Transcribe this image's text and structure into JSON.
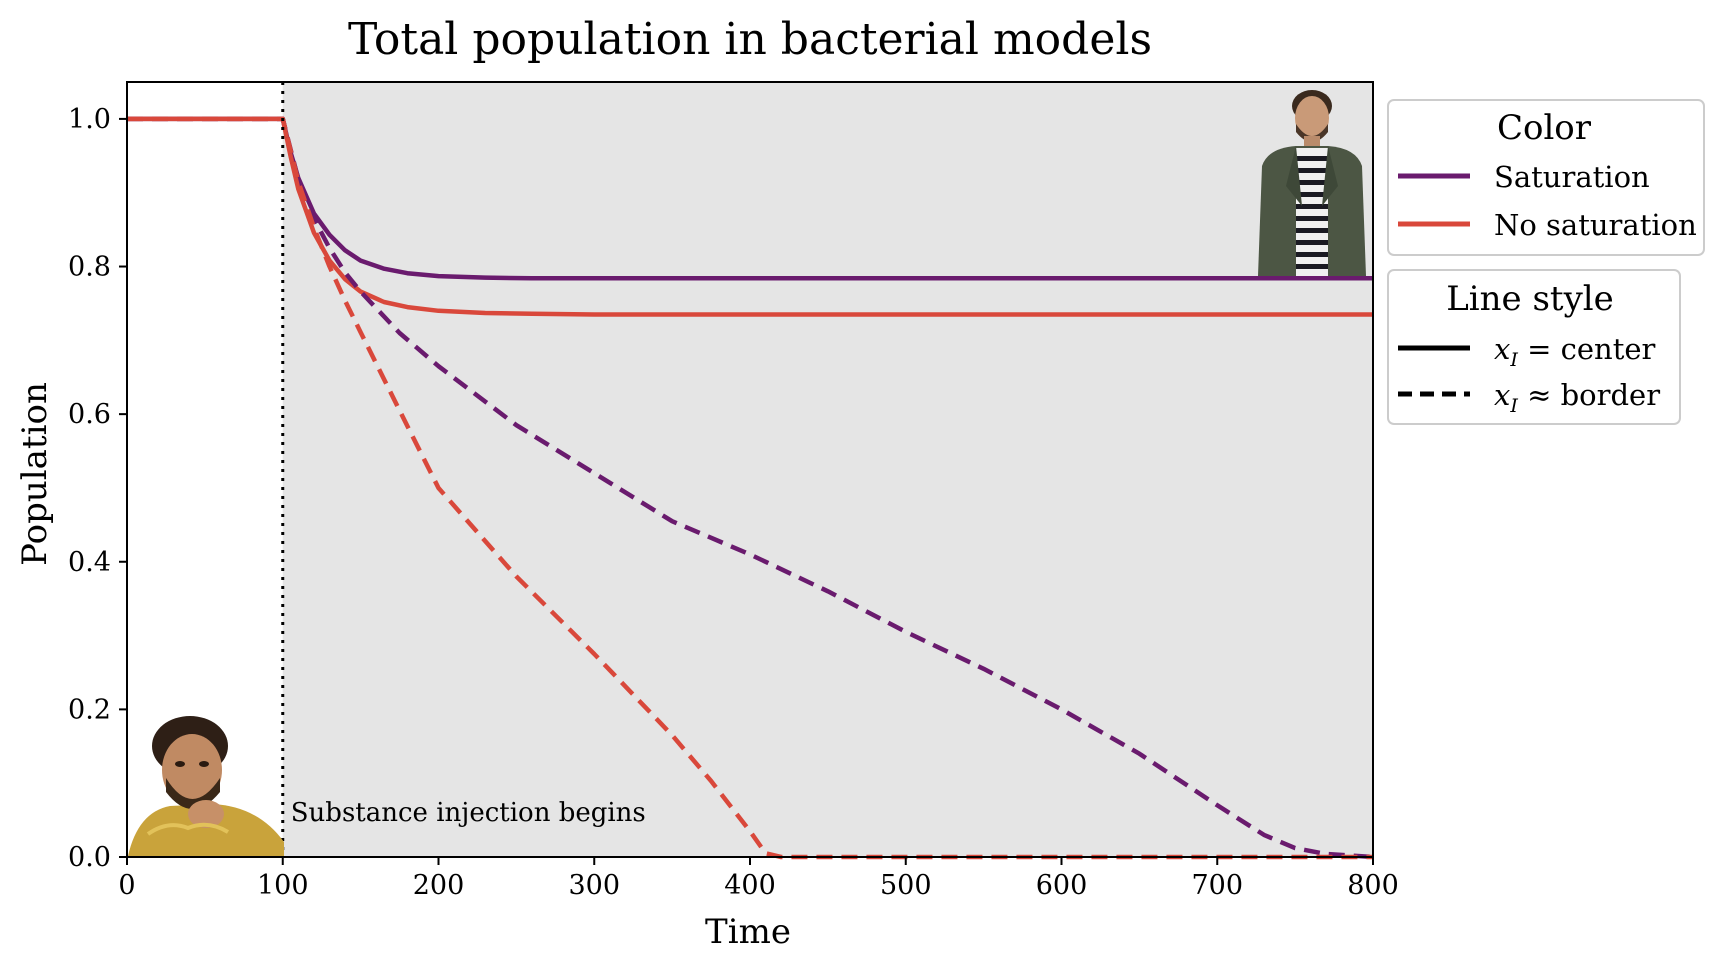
{
  "chart_data": {
    "type": "line",
    "title": "Total population in bacterial models",
    "xlabel": "Time",
    "ylabel": "Population",
    "xlim": [
      0,
      800
    ],
    "ylim": [
      0,
      1.05
    ],
    "xticks": [
      0,
      100,
      200,
      300,
      400,
      500,
      600,
      700,
      800
    ],
    "yticks": [
      0.0,
      0.2,
      0.4,
      0.6,
      0.8,
      1.0
    ],
    "xtick_labels": [
      "0",
      "100",
      "200",
      "300",
      "400",
      "500",
      "600",
      "700",
      "800"
    ],
    "ytick_labels": [
      "0.0",
      "0.2",
      "0.4",
      "0.6",
      "0.8",
      "1.0"
    ],
    "grid": false,
    "background_shading": {
      "from": 100,
      "to": 800,
      "color": "#e5e5e5"
    },
    "annotation": {
      "text": "Substance injection begins",
      "x": 100
    },
    "vline": {
      "x": 100,
      "style": "dotted"
    },
    "colors": {
      "saturation": "#6a1b6e",
      "no_saturation": "#d9483b",
      "axis": "#000000"
    },
    "series": [
      {
        "color": "#6a1b6e",
        "dash": "solid",
        "x": [
          0,
          100,
          105,
          110,
          120,
          130,
          140,
          150,
          165,
          180,
          200,
          230,
          260,
          300,
          400,
          500,
          600,
          700,
          800
        ],
        "y": [
          1.0,
          1.0,
          0.955,
          0.92,
          0.872,
          0.843,
          0.822,
          0.808,
          0.797,
          0.791,
          0.787,
          0.785,
          0.784,
          0.784,
          0.784,
          0.784,
          0.784,
          0.784,
          0.784
        ]
      },
      {
        "color": "#d9483b",
        "dash": "solid",
        "x": [
          0,
          100,
          105,
          110,
          120,
          130,
          140,
          150,
          165,
          180,
          200,
          230,
          260,
          300,
          400,
          500,
          600,
          700,
          800
        ],
        "y": [
          1.0,
          1.0,
          0.95,
          0.905,
          0.846,
          0.808,
          0.783,
          0.766,
          0.752,
          0.745,
          0.74,
          0.737,
          0.736,
          0.735,
          0.735,
          0.735,
          0.735,
          0.735,
          0.735
        ]
      },
      {
        "color": "#6a1b6e",
        "dash": "dashed",
        "x": [
          0,
          100,
          110,
          120,
          130,
          140,
          150,
          175,
          200,
          250,
          300,
          350,
          400,
          450,
          500,
          550,
          600,
          650,
          700,
          730,
          750,
          770,
          800
        ],
        "y": [
          1.0,
          1.0,
          0.918,
          0.865,
          0.825,
          0.792,
          0.766,
          0.71,
          0.665,
          0.585,
          0.52,
          0.455,
          0.41,
          0.36,
          0.305,
          0.255,
          0.2,
          0.14,
          0.07,
          0.03,
          0.012,
          0.004,
          0.0
        ]
      },
      {
        "color": "#d9483b",
        "dash": "dashed",
        "x": [
          0,
          100,
          110,
          120,
          130,
          140,
          150,
          175,
          200,
          250,
          300,
          350,
          375,
          400,
          410,
          420,
          500,
          600,
          700,
          800
        ],
        "y": [
          1.0,
          1.0,
          0.915,
          0.853,
          0.8,
          0.754,
          0.711,
          0.605,
          0.5,
          0.38,
          0.275,
          0.165,
          0.103,
          0.035,
          0.005,
          0.0,
          0.0,
          0.0,
          0.0,
          0.0
        ]
      }
    ],
    "legends": [
      {
        "title": "Color",
        "entries": [
          {
            "label": "Saturation",
            "color": "#6a1b6e",
            "dash": "solid"
          },
          {
            "label": "No saturation",
            "color": "#d9483b",
            "dash": "solid"
          }
        ]
      },
      {
        "title": "Line style",
        "entries": [
          {
            "math": "x",
            "sub": "I",
            "rest": " = center",
            "color": "#000000",
            "dash": "solid"
          },
          {
            "math": "x",
            "sub": "I",
            "rest": " ≈ border",
            "color": "#000000",
            "dash": "dashed"
          }
        ]
      }
    ],
    "images": [
      {
        "name": "man-portrait-standing",
        "description": "person photo",
        "placement": "top-right"
      },
      {
        "name": "man-portrait-smiling",
        "description": "person photo",
        "placement": "bottom-left"
      }
    ]
  }
}
